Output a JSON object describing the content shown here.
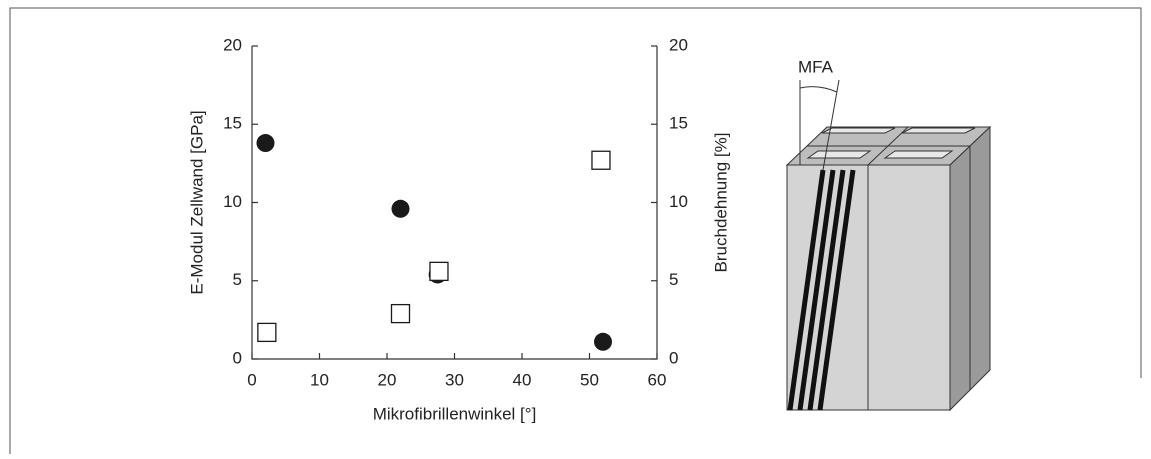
{
  "chart_data": {
    "type": "scatter",
    "xlabel": "Mikrofibrillenwinkel [°]",
    "ylabel": "E-Modul Zellwand [GPa]",
    "y2label": "Bruchdehnung [%]",
    "xlim": [
      0,
      60
    ],
    "xticks": [
      0,
      10,
      20,
      30,
      40,
      50,
      60
    ],
    "ylim": [
      0,
      20
    ],
    "yticks": [
      0,
      5,
      10,
      15,
      20
    ],
    "y2lim": [
      0,
      20
    ],
    "y2ticks": [
      0,
      5,
      10,
      15,
      20
    ],
    "series": [
      {
        "marker": "circle",
        "color": "#1a1a1a",
        "x": [
          2,
          22,
          27.5,
          52
        ],
        "values": [
          13.8,
          9.6,
          5.4,
          1.1
        ]
      },
      {
        "marker": "square",
        "color": "#1a1a1a",
        "axis": "y2",
        "x": [
          2.2,
          22,
          27.7,
          51.7
        ],
        "values": [
          1.7,
          2.9,
          5.6,
          12.7
        ]
      }
    ]
  },
  "diagram": {
    "label": "MFA"
  }
}
